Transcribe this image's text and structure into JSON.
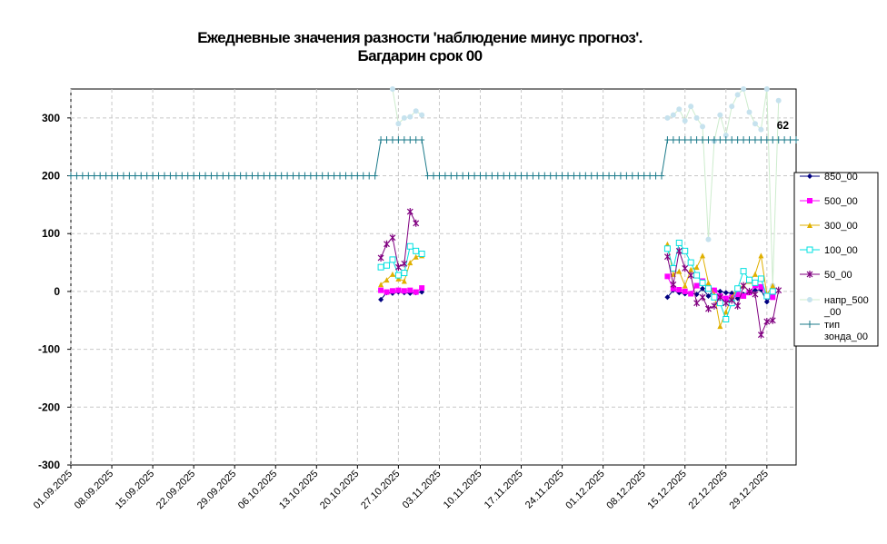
{
  "chart_data": {
    "type": "line",
    "title_line1": "Ежедневные значения разности 'наблюдение минус прогноз'.",
    "title_line2": "Багдарин    срок 00",
    "xlabel": "",
    "ylabel": "",
    "ylim": [
      -300,
      350
    ],
    "yticks": [
      -300,
      -200,
      -100,
      0,
      100,
      200,
      300
    ],
    "xlim": [
      "01.09.2025",
      "03.01.2026"
    ],
    "x_tick_labels": [
      "01.09.2025",
      "08.09.2025",
      "15.09.2025",
      "22.09.2025",
      "29.09.2025",
      "06.10.2025",
      "13.10.2025",
      "20.10.2025",
      "27.10.2025",
      "03.11.2025",
      "10.11.2025",
      "17.11.2025",
      "24.11.2025",
      "01.12.2025",
      "08.12.2025",
      "15.12.2025",
      "22.12.2025",
      "29.12.2025"
    ],
    "grid": true,
    "legend_position": "right",
    "annotation": {
      "text": "62",
      "x": "31.12.2025",
      "y": 262
    },
    "series": [
      {
        "name": "850_00",
        "color": "#000080",
        "marker": "diamond",
        "points": [
          [
            "24.10.2025",
            -14
          ],
          [
            "25.10.2025",
            -2
          ],
          [
            "26.10.2025",
            -3
          ],
          [
            "27.10.2025",
            -1
          ],
          [
            "28.10.2025",
            -2
          ],
          [
            "29.10.2025",
            -3
          ],
          [
            "30.10.2025",
            -2
          ],
          [
            "31.10.2025",
            -1
          ],
          [
            "12.12.2025",
            -10
          ],
          [
            "13.12.2025",
            2
          ],
          [
            "14.12.2025",
            -2
          ],
          [
            "15.12.2025",
            -4
          ],
          [
            "16.12.2025",
            -3
          ],
          [
            "17.12.2025",
            -5
          ],
          [
            "18.12.2025",
            5
          ],
          [
            "19.12.2025",
            -8
          ],
          [
            "20.12.2025",
            2
          ],
          [
            "21.12.2025",
            0
          ],
          [
            "22.12.2025",
            -2
          ],
          [
            "23.12.2025",
            -3
          ],
          [
            "24.12.2025",
            -12
          ],
          [
            "25.12.2025",
            -5
          ],
          [
            "26.12.2025",
            -1
          ],
          [
            "27.12.2025",
            2
          ],
          [
            "28.12.2025",
            3
          ],
          [
            "29.12.2025",
            -18
          ],
          [
            "30.12.2025",
            -6
          ]
        ]
      },
      {
        "name": "500_00",
        "color": "#ff00ff",
        "marker": "square",
        "points": [
          [
            "24.10.2025",
            2
          ],
          [
            "25.10.2025",
            -1
          ],
          [
            "26.10.2025",
            1
          ],
          [
            "27.10.2025",
            2
          ],
          [
            "28.10.2025",
            1
          ],
          [
            "29.10.2025",
            2
          ],
          [
            "30.10.2025",
            -1
          ],
          [
            "31.10.2025",
            6
          ],
          [
            "12.12.2025",
            26
          ],
          [
            "13.12.2025",
            5
          ],
          [
            "14.12.2025",
            3
          ],
          [
            "15.12.2025",
            0
          ],
          [
            "16.12.2025",
            -4
          ],
          [
            "17.12.2025",
            10
          ],
          [
            "18.12.2025",
            18
          ],
          [
            "19.12.2025",
            5
          ],
          [
            "20.12.2025",
            2
          ],
          [
            "21.12.2025",
            -8
          ],
          [
            "22.12.2025",
            -12
          ],
          [
            "23.12.2025",
            -10
          ],
          [
            "24.12.2025",
            -5
          ],
          [
            "25.12.2025",
            -8
          ],
          [
            "26.12.2025",
            -2
          ],
          [
            "27.12.2025",
            10
          ],
          [
            "28.12.2025",
            8
          ],
          [
            "29.12.2025",
            -8
          ],
          [
            "30.12.2025",
            -10
          ]
        ]
      },
      {
        "name": "300_00",
        "color": "#e0b000",
        "marker": "triangle",
        "points": [
          [
            "24.10.2025",
            12
          ],
          [
            "25.10.2025",
            20
          ],
          [
            "26.10.2025",
            30
          ],
          [
            "27.10.2025",
            22
          ],
          [
            "28.10.2025",
            18
          ],
          [
            "29.10.2025",
            50
          ],
          [
            "30.10.2025",
            60
          ],
          [
            "31.10.2025",
            62
          ],
          [
            "12.12.2025",
            82
          ],
          [
            "13.12.2025",
            30
          ],
          [
            "14.12.2025",
            35
          ],
          [
            "15.12.2025",
            10
          ],
          [
            "16.12.2025",
            38
          ],
          [
            "17.12.2025",
            42
          ],
          [
            "18.12.2025",
            62
          ],
          [
            "19.12.2025",
            15
          ],
          [
            "20.12.2025",
            -5
          ],
          [
            "21.12.2025",
            -60
          ],
          [
            "22.12.2025",
            -35
          ],
          [
            "23.12.2025",
            -10
          ],
          [
            "24.12.2025",
            5
          ],
          [
            "25.12.2025",
            10
          ],
          [
            "26.12.2025",
            18
          ],
          [
            "27.12.2025",
            30
          ],
          [
            "28.12.2025",
            62
          ],
          [
            "29.12.2025",
            -5
          ],
          [
            "30.12.2025",
            10
          ]
        ]
      },
      {
        "name": "100_00",
        "color": "#00e0e0",
        "marker": "hollow-square",
        "points": [
          [
            "24.10.2025",
            42
          ],
          [
            "25.10.2025",
            45
          ],
          [
            "26.10.2025",
            55
          ],
          [
            "27.10.2025",
            28
          ],
          [
            "28.10.2025",
            32
          ],
          [
            "29.10.2025",
            78
          ],
          [
            "30.10.2025",
            70
          ],
          [
            "31.10.2025",
            65
          ],
          [
            "12.12.2025",
            74
          ],
          [
            "13.12.2025",
            40
          ],
          [
            "14.12.2025",
            84
          ],
          [
            "15.12.2025",
            70
          ],
          [
            "16.12.2025",
            50
          ],
          [
            "17.12.2025",
            28
          ],
          [
            "18.12.2025",
            15
          ],
          [
            "19.12.2025",
            5
          ],
          [
            "20.12.2025",
            -10
          ],
          [
            "21.12.2025",
            -20
          ],
          [
            "22.12.2025",
            -48
          ],
          [
            "23.12.2025",
            -20
          ],
          [
            "24.12.2025",
            5
          ],
          [
            "25.12.2025",
            35
          ],
          [
            "26.12.2025",
            20
          ],
          [
            "27.12.2025",
            15
          ],
          [
            "28.12.2025",
            22
          ],
          [
            "29.12.2025",
            -8
          ],
          [
            "30.12.2025",
            0
          ]
        ]
      },
      {
        "name": "50_00",
        "color": "#800080",
        "marker": "star",
        "points": [
          [
            "24.10.2025",
            58
          ],
          [
            "25.10.2025",
            82
          ],
          [
            "26.10.2025",
            93
          ],
          [
            "27.10.2025",
            42
          ],
          [
            "28.10.2025",
            48
          ],
          [
            "29.10.2025",
            138
          ],
          [
            "30.10.2025",
            118
          ],
          [
            "12.12.2025",
            60
          ],
          [
            "13.12.2025",
            12
          ],
          [
            "14.12.2025",
            70
          ],
          [
            "15.12.2025",
            40
          ],
          [
            "16.12.2025",
            28
          ],
          [
            "17.12.2025",
            -20
          ],
          [
            "18.12.2025",
            -10
          ],
          [
            "19.12.2025",
            -30
          ],
          [
            "20.12.2025",
            -25
          ],
          [
            "21.12.2025",
            -10
          ],
          [
            "22.12.2025",
            -20
          ],
          [
            "23.12.2025",
            -15
          ],
          [
            "24.12.2025",
            -25
          ],
          [
            "25.12.2025",
            10
          ],
          [
            "26.12.2025",
            0
          ],
          [
            "27.12.2025",
            -5
          ],
          [
            "28.12.2025",
            -75
          ],
          [
            "29.12.2025",
            -52
          ],
          [
            "30.12.2025",
            -50
          ],
          [
            "31.12.2025",
            2
          ]
        ]
      },
      {
        "name": "напр_500_00",
        "color": "#c6e2ee",
        "line_color": "#cdeccd",
        "marker": "circle",
        "points": [
          [
            "26.10.2025",
            350
          ],
          [
            "27.10.2025",
            290
          ],
          [
            "28.10.2025",
            300
          ],
          [
            "29.10.2025",
            302
          ],
          [
            "30.10.2025",
            312
          ],
          [
            "31.10.2025",
            305
          ],
          [
            "12.12.2025",
            300
          ],
          [
            "13.12.2025",
            305
          ],
          [
            "14.12.2025",
            315
          ],
          [
            "15.12.2025",
            295
          ],
          [
            "16.12.2025",
            320
          ],
          [
            "17.12.2025",
            300
          ],
          [
            "18.12.2025",
            285
          ],
          [
            "19.12.2025",
            90
          ],
          [
            "20.12.2025",
            260
          ],
          [
            "21.12.2025",
            305
          ],
          [
            "22.12.2025",
            270
          ],
          [
            "23.12.2025",
            320
          ],
          [
            "24.12.2025",
            340
          ],
          [
            "25.12.2025",
            350
          ],
          [
            "26.12.2025",
            310
          ],
          [
            "27.12.2025",
            290
          ],
          [
            "28.12.2025",
            280
          ],
          [
            "29.12.2025",
            350
          ],
          [
            "30.12.2025",
            10
          ],
          [
            "31.12.2025",
            330
          ]
        ]
      },
      {
        "name": "тип зонда_00",
        "color": "#1b7a8a",
        "marker": "plus",
        "segments": [
          {
            "from": "01.09.2025",
            "to": "23.10.2025",
            "y": 200
          },
          {
            "from": "24.10.2025",
            "to": "31.10.2025",
            "y": 262
          },
          {
            "from": "01.11.2025",
            "to": "11.12.2025",
            "y": 200
          },
          {
            "from": "12.12.2025",
            "to": "03.01.2026",
            "y": 262
          }
        ]
      }
    ]
  },
  "legend": {
    "items": [
      {
        "line1": "850_00",
        "line2": ""
      },
      {
        "line1": "500_00",
        "line2": ""
      },
      {
        "line1": "300_00",
        "line2": ""
      },
      {
        "line1": "100_00",
        "line2": ""
      },
      {
        "line1": "50_00",
        "line2": ""
      },
      {
        "line1": "напр_500",
        "line2": "_00"
      },
      {
        "line1": "тип",
        "line2": "зонда_00"
      }
    ]
  }
}
